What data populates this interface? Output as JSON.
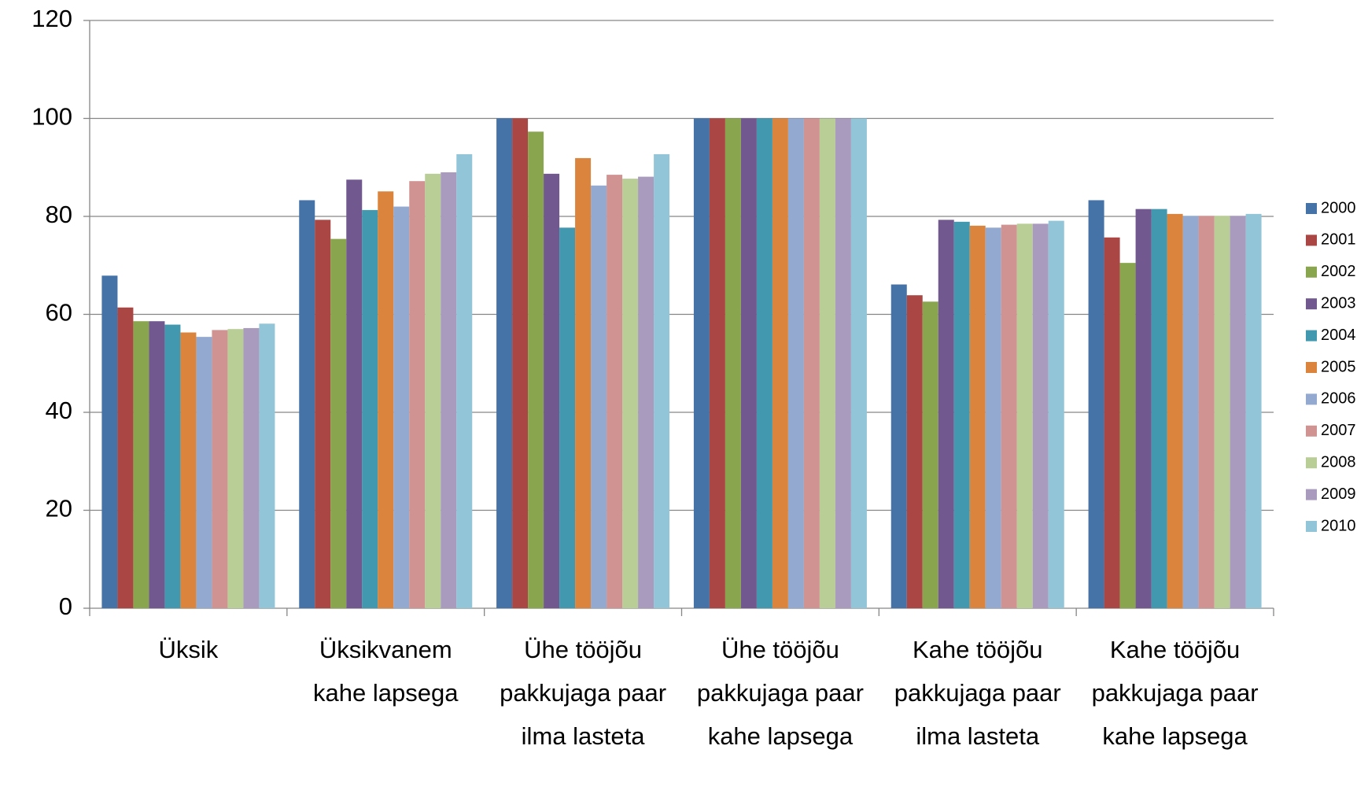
{
  "chart_data": {
    "type": "bar",
    "categories": [
      "Üksik",
      "Üksikvanem kahe lapsega",
      "Ühe tööjõu pakkujaga paar ilma lasteta",
      "Ühe tööjõu pakkujaga paar kahe lapsega",
      "Kahe tööjõu pakkujaga paar ilma lasteta",
      "Kahe tööjõu pakkujaga paar kahe lapsega"
    ],
    "series": [
      {
        "name": "2000",
        "color": "#4572A7",
        "values": [
          67.9,
          83.3,
          100,
          100,
          66.1,
          83.3
        ]
      },
      {
        "name": "2001",
        "color": "#AA4643",
        "values": [
          61.4,
          79.3,
          100,
          100,
          63.9,
          75.7
        ]
      },
      {
        "name": "2002",
        "color": "#89A54E",
        "values": [
          58.6,
          75.4,
          97.3,
          100,
          62.6,
          70.5
        ]
      },
      {
        "name": "2003",
        "color": "#71588F",
        "values": [
          58.6,
          87.5,
          88.7,
          100,
          79.3,
          81.5
        ]
      },
      {
        "name": "2004",
        "color": "#4198AF",
        "values": [
          57.9,
          81.3,
          77.7,
          100,
          78.9,
          81.5
        ]
      },
      {
        "name": "2005",
        "color": "#DB843D",
        "values": [
          56.3,
          85.1,
          91.9,
          100,
          78.1,
          80.5
        ]
      },
      {
        "name": "2006",
        "color": "#93A9CF",
        "values": [
          55.4,
          82.0,
          86.3,
          100,
          77.7,
          80.1
        ]
      },
      {
        "name": "2007",
        "color": "#D19392",
        "values": [
          56.8,
          87.2,
          88.5,
          100,
          78.3,
          80.1
        ]
      },
      {
        "name": "2008",
        "color": "#B9CD96",
        "values": [
          57.0,
          88.7,
          87.7,
          100,
          78.5,
          80.1
        ]
      },
      {
        "name": "2009",
        "color": "#A99BBD",
        "values": [
          57.2,
          89.0,
          88.1,
          100,
          78.5,
          80.1
        ]
      },
      {
        "name": "2010",
        "color": "#92C5D8",
        "values": [
          58.1,
          92.7,
          92.7,
          100,
          79.1,
          80.5
        ]
      }
    ],
    "ylim": [
      0,
      120
    ],
    "yticks": [
      0,
      20,
      40,
      60,
      80,
      100,
      120
    ],
    "grid": true,
    "legend": "right"
  }
}
